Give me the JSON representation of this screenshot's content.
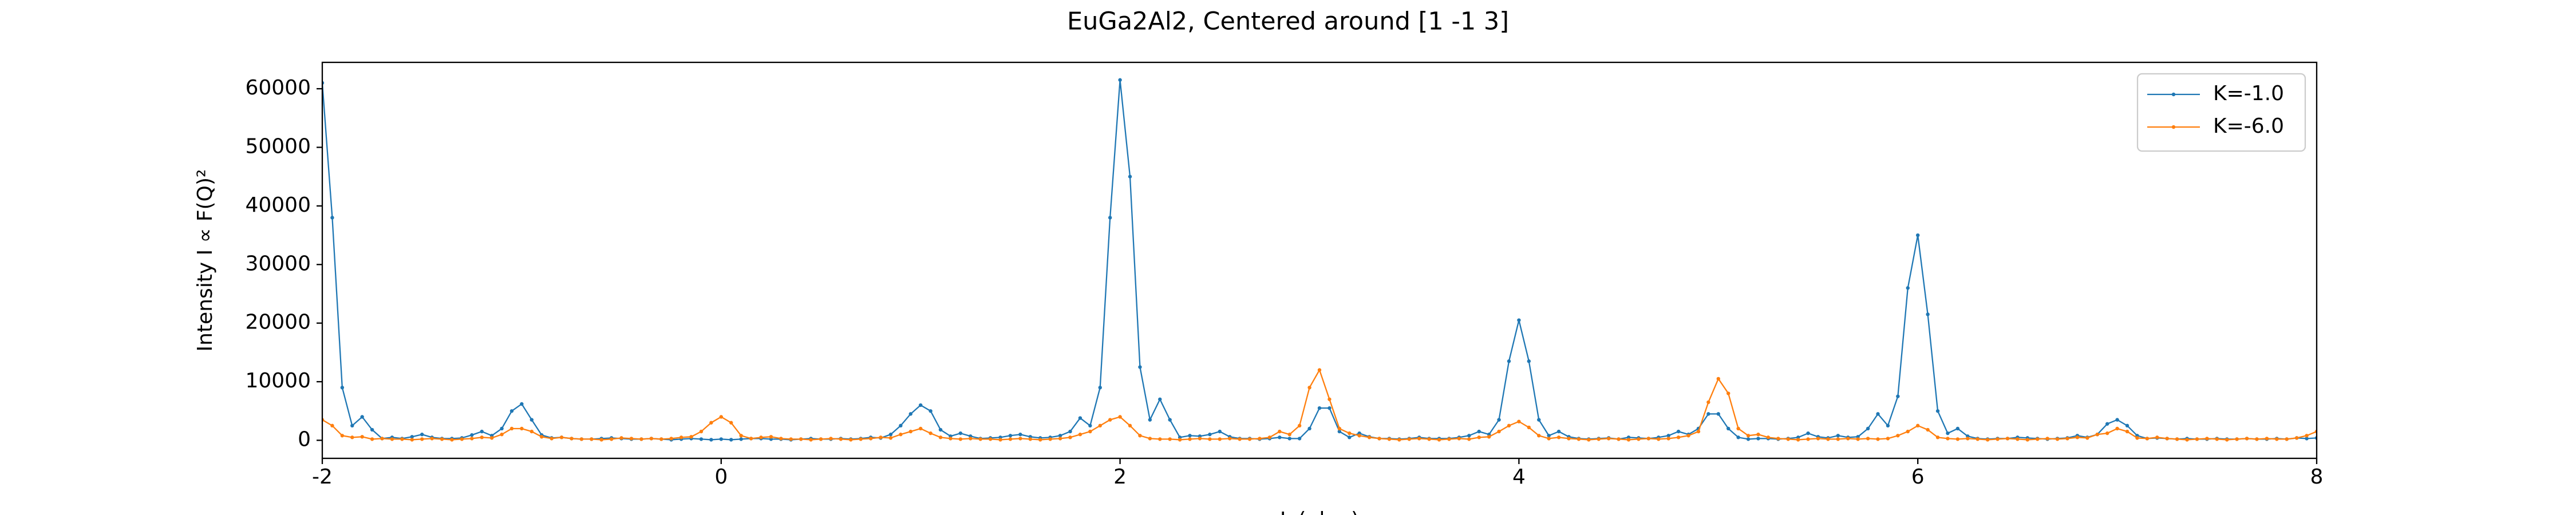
{
  "chart_data": {
    "type": "line",
    "title": "EuGa2Al2, Centered around [1 -1 3]",
    "x_label": "L (r.l.u.)",
    "y_label": "Intensity I ∝ F(Q)²",
    "x": [
      -2,
      -1.95,
      -1.9,
      -1.85,
      -1.8,
      -1.75,
      -1.7,
      -1.65,
      -1.6,
      -1.55,
      -1.5,
      -1.45,
      -1.4,
      -1.35,
      -1.3,
      -1.25,
      -1.2,
      -1.15,
      -1.1,
      -1.05,
      -1,
      -0.95,
      -0.9,
      -0.85,
      -0.8,
      -0.75,
      -0.7,
      -0.65,
      -0.6,
      -0.55,
      -0.5,
      -0.45,
      -0.4,
      -0.35,
      -0.3,
      -0.25,
      -0.2,
      -0.15,
      -0.1,
      -0.05,
      0,
      0.05,
      0.1,
      0.15,
      0.2,
      0.25,
      0.3,
      0.35,
      0.4,
      0.45,
      0.5,
      0.55,
      0.6,
      0.65,
      0.7,
      0.75,
      0.8,
      0.85,
      0.9,
      0.95,
      1,
      1.05,
      1.1,
      1.15,
      1.2,
      1.25,
      1.3,
      1.35,
      1.4,
      1.45,
      1.5,
      1.55,
      1.6,
      1.65,
      1.7,
      1.75,
      1.8,
      1.85,
      1.9,
      1.95,
      2,
      2.05,
      2.1,
      2.15,
      2.2,
      2.25,
      2.3,
      2.35,
      2.4,
      2.45,
      2.5,
      2.55,
      2.6,
      2.65,
      2.7,
      2.75,
      2.8,
      2.85,
      2.9,
      2.95,
      3,
      3.05,
      3.1,
      3.15,
      3.2,
      3.25,
      3.3,
      3.35,
      3.4,
      3.45,
      3.5,
      3.55,
      3.6,
      3.65,
      3.7,
      3.75,
      3.8,
      3.85,
      3.9,
      3.95,
      4,
      4.05,
      4.1,
      4.15,
      4.2,
      4.25,
      4.3,
      4.35,
      4.4,
      4.45,
      4.5,
      4.55,
      4.6,
      4.65,
      4.7,
      4.75,
      4.8,
      4.85,
      4.9,
      4.95,
      5,
      5.05,
      5.1,
      5.15,
      5.2,
      5.25,
      5.3,
      5.35,
      5.4,
      5.45,
      5.5,
      5.55,
      5.6,
      5.65,
      5.7,
      5.75,
      5.8,
      5.85,
      5.9,
      5.95,
      6,
      6.05,
      6.1,
      6.15,
      6.2,
      6.25,
      6.3,
      6.35,
      6.4,
      6.45,
      6.5,
      6.55,
      6.6,
      6.65,
      6.7,
      6.75,
      6.8,
      6.85,
      6.9,
      6.95,
      7,
      7.05,
      7.1,
      7.15,
      7.2,
      7.25,
      7.3,
      7.35,
      7.4,
      7.45,
      7.5,
      7.55,
      7.6,
      7.65,
      7.7,
      7.75,
      7.8,
      7.85,
      7.9,
      7.95,
      8
    ],
    "series": [
      {
        "name": "K=-1.0",
        "color": "#1f77b4",
        "values": [
          61000,
          38000,
          9000,
          2500,
          4000,
          1800,
          300,
          500,
          300,
          600,
          1000,
          500,
          300,
          300,
          400,
          900,
          1500,
          800,
          2000,
          5000,
          6200,
          3500,
          900,
          400,
          500,
          300,
          200,
          200,
          300,
          400,
          300,
          200,
          200,
          300,
          200,
          100,
          200,
          300,
          200,
          100,
          200,
          100,
          200,
          300,
          300,
          200,
          200,
          100,
          200,
          300,
          200,
          200,
          300,
          200,
          300,
          500,
          400,
          1000,
          2500,
          4500,
          6000,
          5000,
          1800,
          700,
          1200,
          700,
          300,
          400,
          500,
          800,
          1000,
          600,
          400,
          500,
          800,
          1500,
          3800,
          2500,
          9000,
          38000,
          61500,
          45000,
          12500,
          3500,
          7000,
          3500,
          500,
          800,
          700,
          1000,
          1500,
          600,
          300,
          300,
          200,
          300,
          500,
          300,
          300,
          2000,
          5500,
          5500,
          1500,
          500,
          1200,
          600,
          300,
          300,
          200,
          300,
          500,
          300,
          300,
          300,
          500,
          800,
          1500,
          1000,
          3500,
          13500,
          20500,
          13500,
          3500,
          800,
          1500,
          600,
          300,
          200,
          300,
          400,
          200,
          500,
          400,
          300,
          500,
          800,
          1500,
          1000,
          2000,
          4500,
          4500,
          2000,
          500,
          200,
          300,
          300,
          200,
          300,
          500,
          1200,
          600,
          400,
          800,
          500,
          600,
          2000,
          4500,
          2500,
          7500,
          26000,
          35000,
          21500,
          5000,
          1200,
          2000,
          700,
          300,
          200,
          300,
          300,
          500,
          400,
          300,
          200,
          300,
          400,
          800,
          500,
          1000,
          2800,
          3500,
          2500,
          800,
          300,
          400,
          300,
          200,
          300,
          200,
          200,
          300,
          200,
          200,
          300,
          200,
          200,
          300,
          200,
          400,
          300,
          400
        ]
      },
      {
        "name": "K=-6.0",
        "color": "#ff7f0e",
        "values": [
          3500,
          2500,
          800,
          500,
          600,
          200,
          300,
          200,
          200,
          100,
          200,
          300,
          200,
          100,
          200,
          300,
          500,
          400,
          1000,
          2000,
          2000,
          1500,
          600,
          300,
          500,
          300,
          200,
          200,
          100,
          200,
          400,
          300,
          200,
          300,
          200,
          300,
          500,
          600,
          1500,
          3000,
          4000,
          3000,
          800,
          300,
          500,
          600,
          300,
          200,
          200,
          100,
          200,
          300,
          200,
          100,
          200,
          300,
          500,
          400,
          1000,
          1500,
          2000,
          1200,
          500,
          300,
          200,
          300,
          200,
          200,
          100,
          200,
          300,
          200,
          100,
          200,
          300,
          500,
          1000,
          1500,
          2500,
          3500,
          4000,
          2500,
          800,
          300,
          200,
          200,
          100,
          200,
          300,
          200,
          200,
          300,
          200,
          200,
          300,
          500,
          1500,
          1000,
          2500,
          9000,
          12000,
          7000,
          2000,
          1200,
          800,
          500,
          300,
          200,
          100,
          200,
          300,
          200,
          100,
          200,
          300,
          200,
          500,
          600,
          1500,
          2500,
          3200,
          2200,
          800,
          300,
          500,
          300,
          200,
          100,
          200,
          300,
          200,
          100,
          200,
          300,
          200,
          300,
          500,
          800,
          1500,
          6500,
          10500,
          8000,
          2000,
          800,
          1000,
          500,
          300,
          200,
          100,
          200,
          300,
          200,
          200,
          300,
          200,
          300,
          200,
          300,
          800,
          1500,
          2500,
          1800,
          500,
          300,
          200,
          300,
          200,
          100,
          200,
          300,
          200,
          100,
          200,
          300,
          200,
          300,
          500,
          400,
          1000,
          1200,
          2000,
          1500,
          400,
          300,
          500,
          300,
          200,
          100,
          200,
          300,
          200,
          100,
          200,
          300,
          200,
          300,
          200,
          200,
          400,
          800,
          1500
        ]
      }
    ],
    "xlim": [
      -2,
      8
    ],
    "xticks": [
      -2,
      0,
      2,
      4,
      6,
      8
    ],
    "ylim": [
      -3080,
      64500
    ],
    "yticks": [
      0,
      10000,
      20000,
      30000,
      40000,
      50000,
      60000
    ],
    "grid": false,
    "legend": "upper right"
  }
}
